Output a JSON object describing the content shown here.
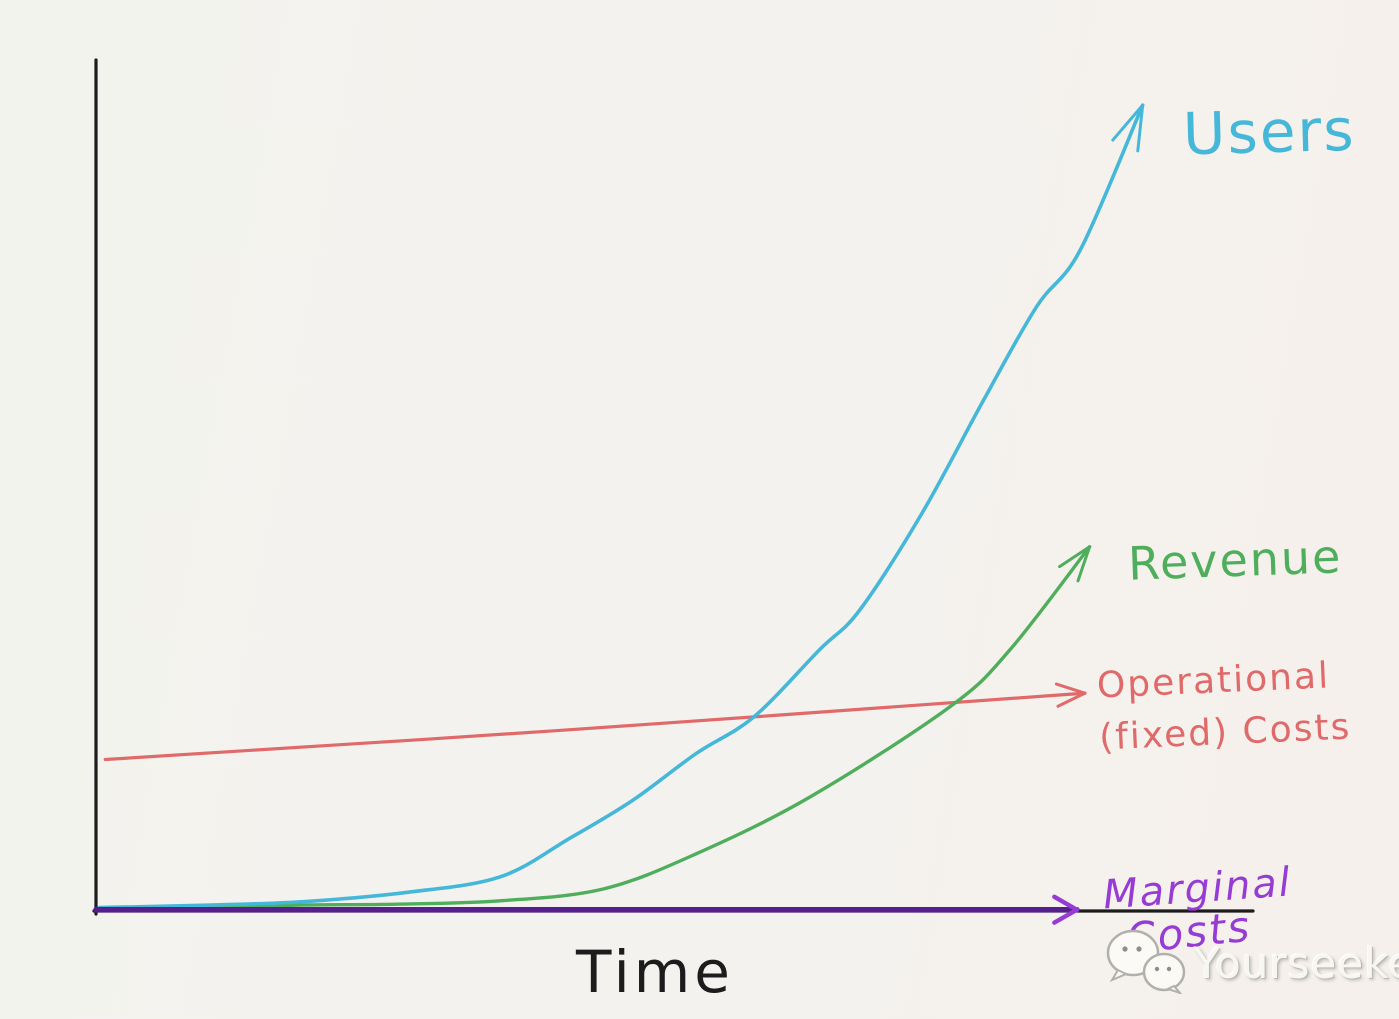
{
  "page": {
    "background": "#f3f2ee"
  },
  "chart_data": {
    "type": "line",
    "title": "",
    "xlabel": "Time",
    "ylabel": "",
    "x_range": [
      0,
      100
    ],
    "y_range": [
      0,
      100
    ],
    "grid": false,
    "legend": "inline-end-of-line-annotations",
    "axis_color": "#1c1c1c",
    "style": "hand-drawn sketch, exponential growth chart",
    "series": [
      {
        "name": "Users",
        "color": "#45b7d9",
        "arrow": true,
        "points": [
          [
            0.3,
            0.4
          ],
          [
            10,
            0.7
          ],
          [
            18,
            1.1
          ],
          [
            27,
            2.2
          ],
          [
            35,
            4.0
          ],
          [
            41,
            8.5
          ],
          [
            46.5,
            13.0
          ],
          [
            52,
            18.5
          ],
          [
            57,
            22.8
          ],
          [
            62.7,
            30.7
          ],
          [
            66.2,
            35.4
          ],
          [
            71.6,
            46.8
          ],
          [
            76.9,
            60.0
          ],
          [
            81.5,
            71.0
          ],
          [
            85.3,
            77.7
          ],
          [
            90.7,
            94.7
          ]
        ]
      },
      {
        "name": "Revenue",
        "color": "#4fae5c",
        "arrow": true,
        "points": [
          [
            0.35,
            0.1
          ],
          [
            10,
            0.4
          ],
          [
            17.7,
            0.7
          ],
          [
            26,
            0.8
          ],
          [
            35,
            1.2
          ],
          [
            44,
            2.6
          ],
          [
            52.3,
            6.9
          ],
          [
            62,
            13.5
          ],
          [
            74,
            24.0
          ],
          [
            79.2,
            30.7
          ],
          [
            86.1,
            42.8
          ]
        ]
      },
      {
        "name": "Operational (fixed) Costs",
        "color": "#e06a6a",
        "arrow": true,
        "points": [
          [
            0.8,
            17.8
          ],
          [
            40,
            21.2
          ],
          [
            85.7,
            25.6
          ]
        ]
      },
      {
        "name": "Marginal Costs",
        "color": "#571f8d",
        "arrow": true,
        "arrow_color": "#963bd4",
        "points": [
          [
            0,
            0.15
          ],
          [
            40,
            0.15
          ],
          [
            85,
            0.15
          ]
        ]
      }
    ]
  },
  "labels": {
    "users": "Users",
    "revenue": "Revenue",
    "operational_line1": "Operational",
    "operational_line2": "(fixed) Costs",
    "marginal_line1": "Marginal",
    "marginal_line2": "Costs",
    "time_axis": "Time"
  },
  "watermark": {
    "text": "Yourseeker",
    "icon": "wechat-chat-bubbles-icon"
  },
  "colors": {
    "users": "#45b7d9",
    "revenue": "#4fae5c",
    "operational_costs": "#e06a6a",
    "marginal_costs_line": "#571f8d",
    "marginal_costs_label": "#963bd4",
    "axis": "#1c1c1c",
    "background": "#f3f2ee",
    "watermark_text": "#f7f6f2"
  }
}
